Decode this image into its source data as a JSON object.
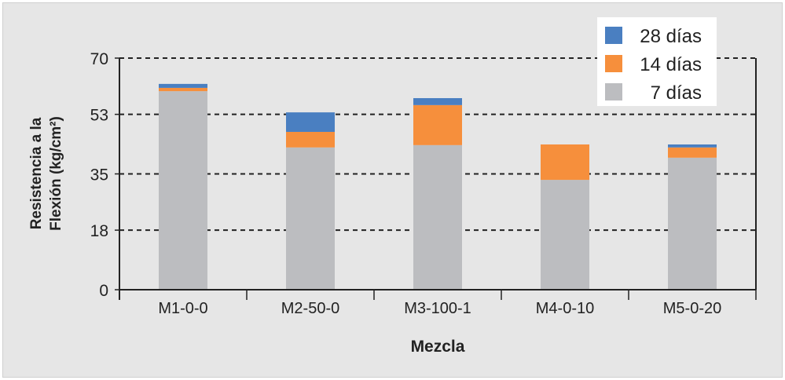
{
  "chart_data": {
    "type": "bar",
    "stacked": true,
    "title": "",
    "xlabel": "Mezcla",
    "ylabel_lines": [
      "Resistencia a la",
      "Flexión (kg/cm²)"
    ],
    "ylim": [
      0,
      70
    ],
    "yticks": [
      0,
      18,
      35,
      53,
      70
    ],
    "grid": true,
    "legend_position": "top-right",
    "categories": [
      "M1-0-0",
      "M2-50-0",
      "M3-100-1",
      "M4-0-10",
      "M5-0-20"
    ],
    "series": [
      {
        "name": "7 días",
        "color": "#bcbdc0",
        "values": [
          60.0,
          43.0,
          43.7,
          33.2,
          39.9
        ]
      },
      {
        "name": "14 días",
        "color": "#f68f3c",
        "values": [
          1.0,
          4.7,
          12.1,
          10.7,
          3.1
        ]
      },
      {
        "name": "28 días",
        "color": "#4a7fc1",
        "values": [
          1.2,
          5.9,
          2.1,
          0,
          0.9
        ]
      }
    ]
  }
}
